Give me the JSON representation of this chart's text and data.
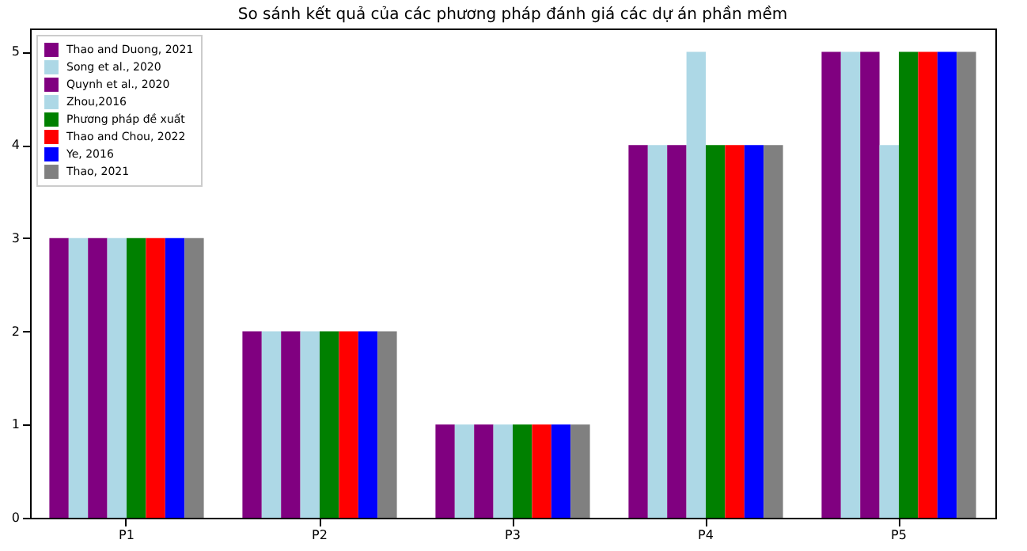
{
  "chart_data": {
    "type": "bar",
    "title": "So sánh kết quả của các phương pháp đánh giá các dự án phần mềm",
    "categories": [
      "P1",
      "P2",
      "P3",
      "P4",
      "P5"
    ],
    "series": [
      {
        "name": "Thao and Duong, 2021",
        "color": "#800080",
        "values": [
          3,
          2,
          1,
          4,
          5
        ]
      },
      {
        "name": "Song et al., 2020",
        "color": "#add8e6",
        "values": [
          3,
          2,
          1,
          4,
          5
        ]
      },
      {
        "name": "Quynh et al., 2020",
        "color": "#800080",
        "values": [
          3,
          2,
          1,
          4,
          5
        ]
      },
      {
        "name": "Zhou,2016",
        "color": "#add8e6",
        "values": [
          3,
          2,
          1,
          5,
          4
        ]
      },
      {
        "name": "Phương pháp đề xuất",
        "color": "#008000",
        "values": [
          3,
          2,
          1,
          4,
          5
        ]
      },
      {
        "name": "Thao and Chou, 2022",
        "color": "#ff0000",
        "values": [
          3,
          2,
          1,
          4,
          5
        ]
      },
      {
        "name": "Ye, 2016",
        "color": "#0000ff",
        "values": [
          3,
          2,
          1,
          4,
          5
        ]
      },
      {
        "name": "Thao, 2021",
        "color": "#808080",
        "values": [
          3,
          2,
          1,
          4,
          5
        ]
      }
    ],
    "ylim": [
      0,
      5.25
    ],
    "yticks": [
      0,
      1,
      2,
      3,
      4,
      5
    ],
    "grid": false,
    "legend": "top left"
  }
}
